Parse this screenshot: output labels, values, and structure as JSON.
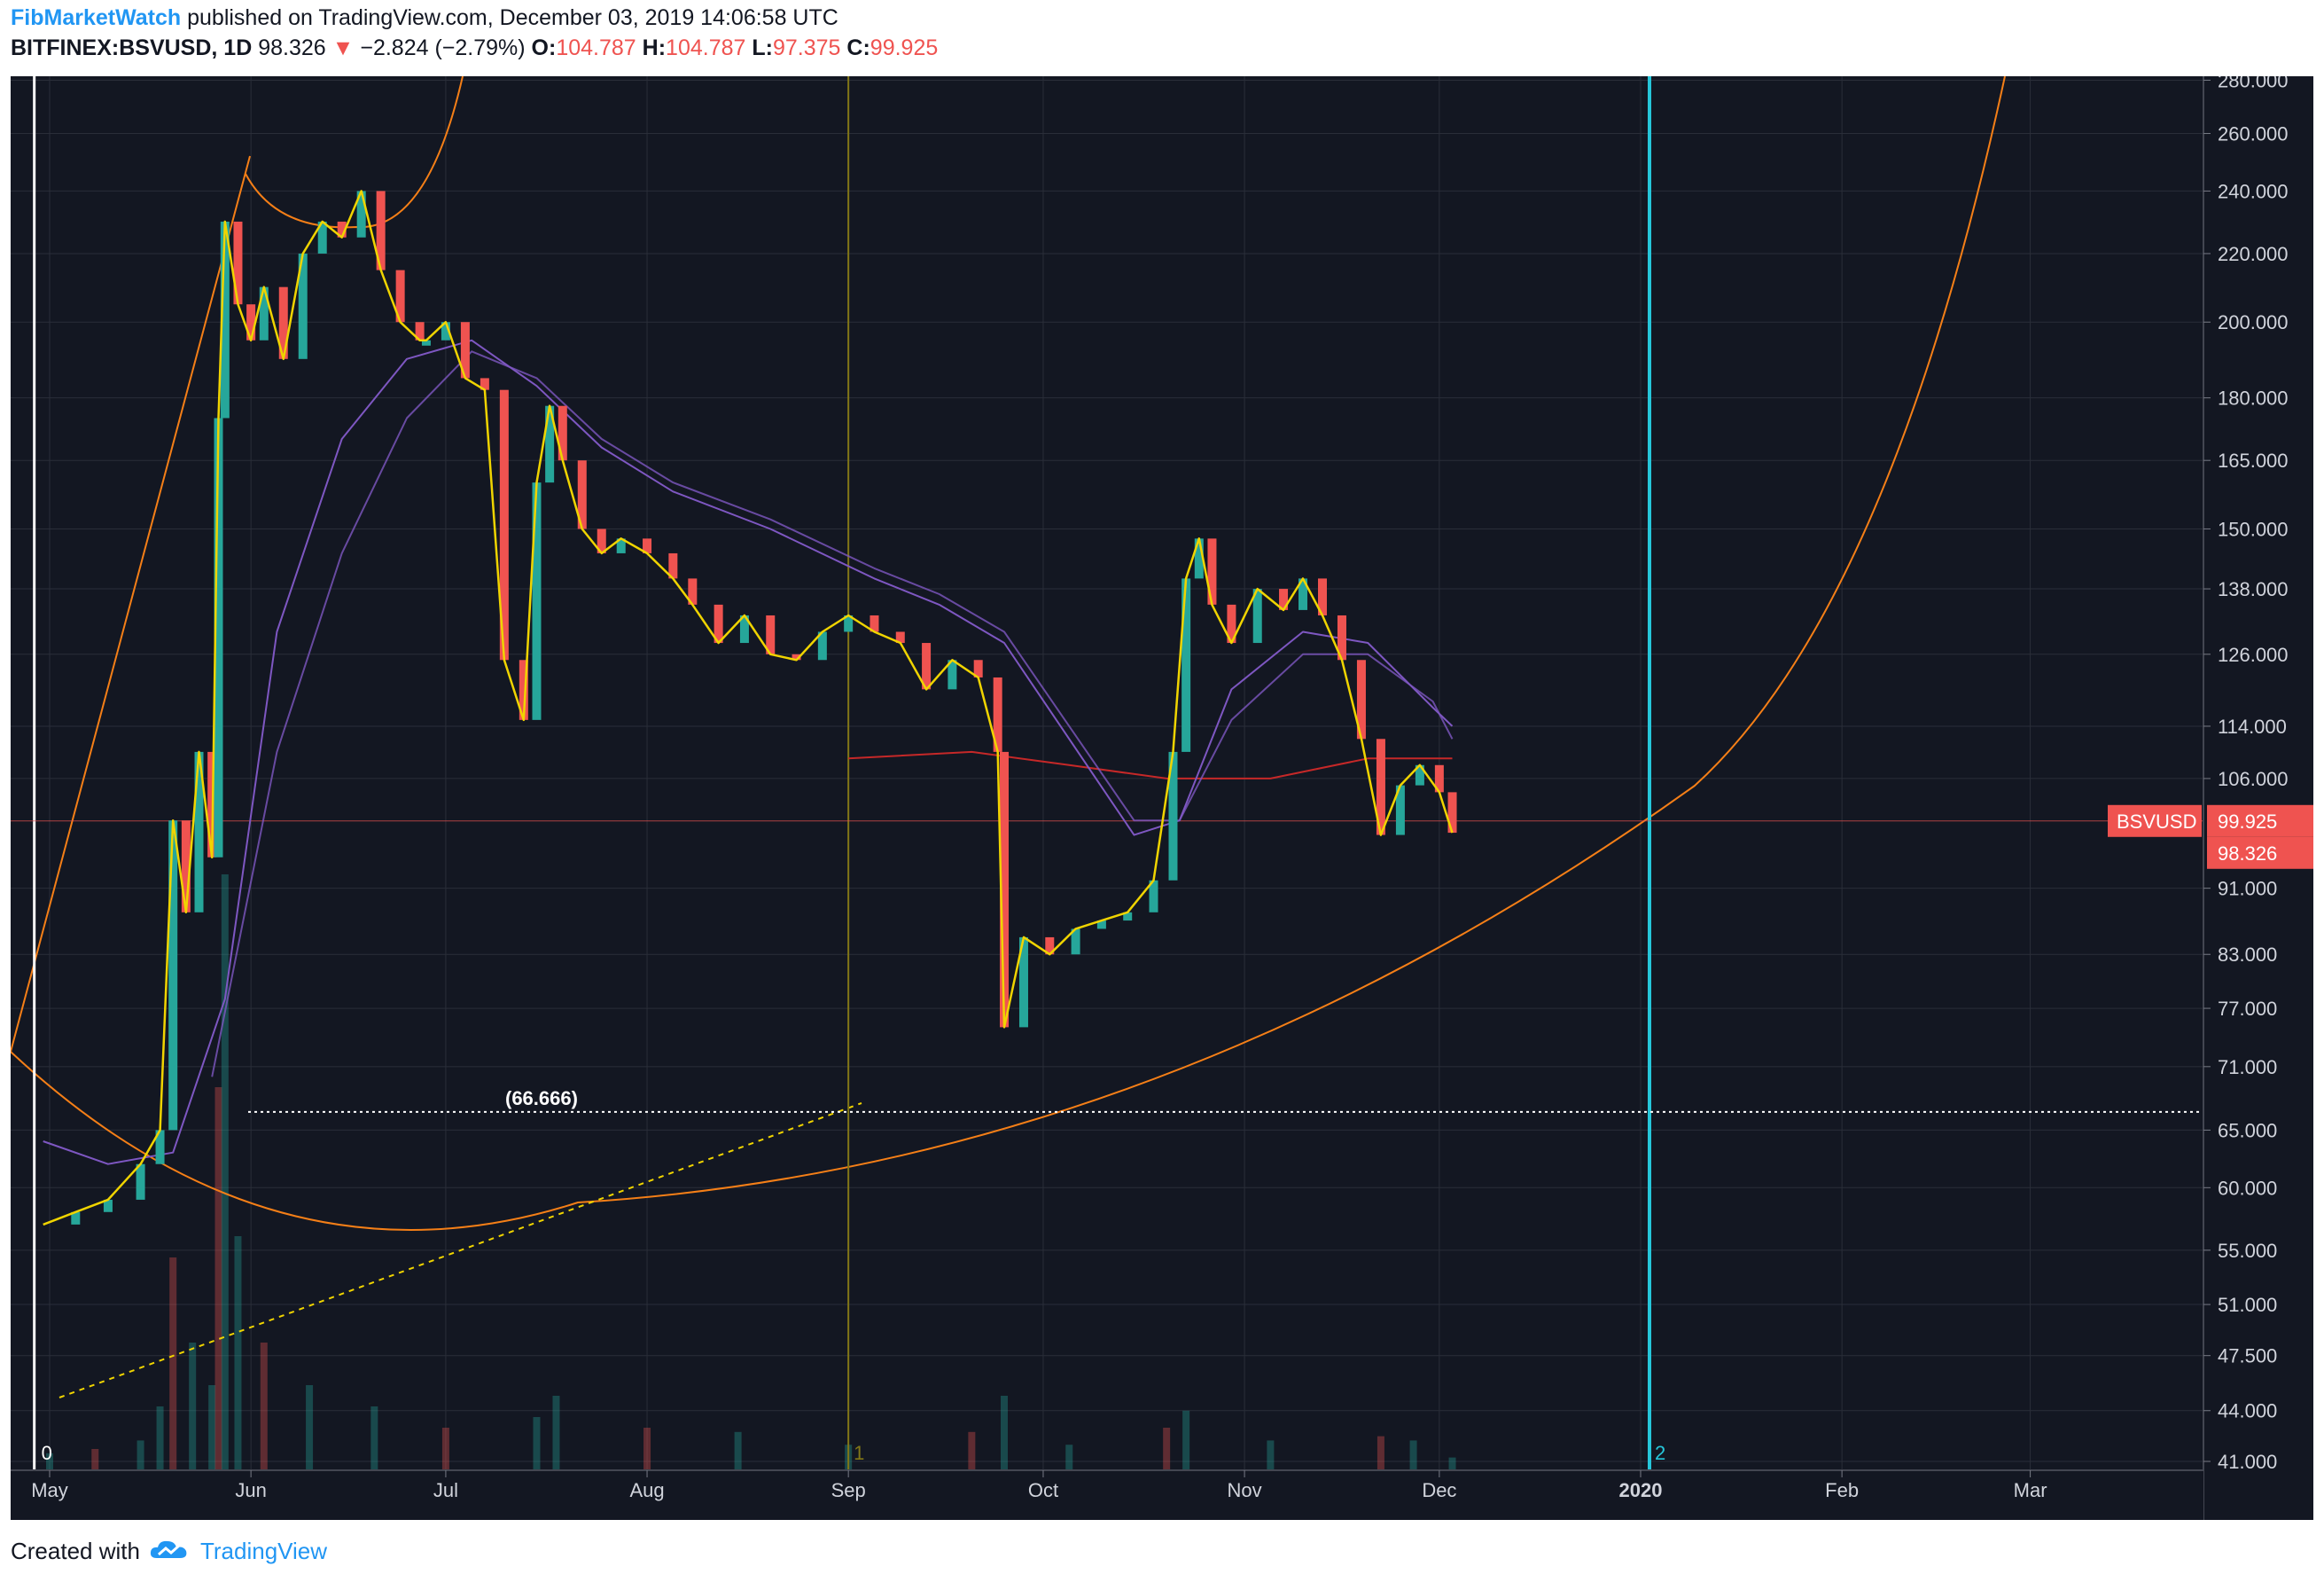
{
  "header": {
    "author": "FibMarketWatch",
    "published": "published on TradingView.com, December 03, 2019 14:06:58 UTC",
    "symbol": "BITFINEX:BSVUSD, 1D",
    "last": "98.326",
    "change_arrow": "▼",
    "change": "−2.824 (−2.79%)",
    "open_label": "O:",
    "open": "104.787",
    "high_label": "H:",
    "high": "104.787",
    "low_label": "L:",
    "low": "97.375",
    "close_label": "C:",
    "close": "99.925"
  },
  "footer": {
    "created_with": "Created with",
    "brand": "TradingView"
  },
  "colors": {
    "background": "#131722",
    "grid": "#2a2e39",
    "up": "#26a69a",
    "down": "#ef5350",
    "price_line": "#f0d400",
    "ma_line": "#7e57c2",
    "red_ma": "#c62828",
    "arc": "#f57f17",
    "cyan": "#26c6da",
    "white": "#ffffff",
    "olive": "#827717",
    "text_axis": "#d1d4dc"
  },
  "chart_data": {
    "type": "line",
    "x_axis_labels": [
      "May",
      "Jun",
      "Jul",
      "Aug",
      "Sep",
      "Oct",
      "Nov",
      "Dec",
      "2020",
      "Feb",
      "Mar"
    ],
    "y_axis_labels": [
      "280.000",
      "260.000",
      "240.000",
      "220.000",
      "200.000",
      "180.000",
      "165.000",
      "150.000",
      "138.000",
      "126.000",
      "114.000",
      "106.000",
      "99.925",
      "98.326",
      "91.000",
      "83.000",
      "77.000",
      "71.000",
      "65.000",
      "60.000",
      "55.000",
      "51.000",
      "47.500",
      "44.000",
      "41.000"
    ],
    "y_scale": "log",
    "y_range": [
      41,
      290
    ],
    "symbol_badge": "BSVUSD",
    "last_price": 98.326,
    "close_price": 99.925,
    "fib_level_label": "(66.666)",
    "fib_level": 66.666,
    "vertical_marker_labels": [
      "0",
      "1",
      "2"
    ],
    "price_series": {
      "name": "BSVUSD",
      "dates": [
        "2019-04-30",
        "2019-05-05",
        "2019-05-10",
        "2019-05-15",
        "2019-05-18",
        "2019-05-20",
        "2019-05-22",
        "2019-05-24",
        "2019-05-26",
        "2019-05-27",
        "2019-05-28",
        "2019-05-30",
        "2019-06-01",
        "2019-06-03",
        "2019-06-06",
        "2019-06-09",
        "2019-06-12",
        "2019-06-15",
        "2019-06-18",
        "2019-06-21",
        "2019-06-24",
        "2019-06-27",
        "2019-06-28",
        "2019-07-01",
        "2019-07-04",
        "2019-07-07",
        "2019-07-10",
        "2019-07-13",
        "2019-07-15",
        "2019-07-17",
        "2019-07-19",
        "2019-07-22",
        "2019-07-25",
        "2019-07-28",
        "2019-08-01",
        "2019-08-05",
        "2019-08-08",
        "2019-08-12",
        "2019-08-16",
        "2019-08-20",
        "2019-08-24",
        "2019-08-28",
        "2019-09-01",
        "2019-09-05",
        "2019-09-09",
        "2019-09-13",
        "2019-09-17",
        "2019-09-21",
        "2019-09-24",
        "2019-09-25",
        "2019-09-28",
        "2019-10-02",
        "2019-10-06",
        "2019-10-10",
        "2019-10-14",
        "2019-10-18",
        "2019-10-21",
        "2019-10-23",
        "2019-10-25",
        "2019-10-27",
        "2019-10-30",
        "2019-11-03",
        "2019-11-07",
        "2019-11-10",
        "2019-11-13",
        "2019-11-16",
        "2019-11-19",
        "2019-11-22",
        "2019-11-25",
        "2019-11-28",
        "2019-12-01",
        "2019-12-03"
      ],
      "values": [
        57,
        58,
        59,
        62,
        65,
        100,
        88,
        110,
        95,
        175,
        230,
        205,
        195,
        210,
        190,
        220,
        230,
        225,
        240,
        215,
        200,
        195,
        195,
        200,
        185,
        182,
        125,
        115,
        160,
        178,
        165,
        150,
        145,
        148,
        145,
        140,
        135,
        128,
        133,
        126,
        125,
        130,
        133,
        130,
        128,
        120,
        125,
        122,
        110,
        75,
        85,
        83,
        86,
        87,
        88,
        92,
        110,
        140,
        148,
        135,
        128,
        138,
        134,
        140,
        133,
        125,
        112,
        98,
        105,
        108,
        104,
        98.3
      ]
    },
    "ma_purple_series": {
      "dates": [
        "2019-04-30",
        "2019-05-10",
        "2019-05-20",
        "2019-05-28",
        "2019-06-05",
        "2019-06-15",
        "2019-06-25",
        "2019-07-05",
        "2019-07-15",
        "2019-07-25",
        "2019-08-05",
        "2019-08-20",
        "2019-09-05",
        "2019-09-15",
        "2019-09-25",
        "2019-10-05",
        "2019-10-15",
        "2019-10-22",
        "2019-10-30",
        "2019-11-10",
        "2019-11-20",
        "2019-11-30",
        "2019-12-03"
      ],
      "values": [
        64,
        62,
        63,
        78,
        130,
        170,
        190,
        195,
        183,
        168,
        158,
        150,
        140,
        135,
        128,
        112,
        98,
        100,
        120,
        130,
        128,
        117,
        114
      ]
    },
    "ma_purple2_series": {
      "dates": [
        "2019-05-26",
        "2019-06-05",
        "2019-06-15",
        "2019-06-25",
        "2019-07-05",
        "2019-07-15",
        "2019-07-25",
        "2019-08-05",
        "2019-08-20",
        "2019-09-05",
        "2019-09-15",
        "2019-09-25",
        "2019-10-05",
        "2019-10-15",
        "2019-10-22",
        "2019-10-30",
        "2019-11-10",
        "2019-11-20",
        "2019-11-30",
        "2019-12-03"
      ],
      "values": [
        70,
        110,
        145,
        175,
        192,
        185,
        170,
        160,
        152,
        142,
        137,
        130,
        114,
        100,
        100,
        115,
        126,
        126,
        118,
        112
      ]
    },
    "ma_red_series": {
      "dates": [
        "2019-09-01",
        "2019-09-20",
        "2019-10-05",
        "2019-10-20",
        "2019-11-05",
        "2019-11-20",
        "2019-12-03"
      ],
      "values": [
        109,
        110,
        108,
        106,
        106,
        109,
        109
      ]
    },
    "volume_series": {
      "dates": [
        "2019-05-01",
        "2019-05-08",
        "2019-05-15",
        "2019-05-18",
        "2019-05-20",
        "2019-05-23",
        "2019-05-26",
        "2019-05-27",
        "2019-05-28",
        "2019-05-30",
        "2019-06-03",
        "2019-06-10",
        "2019-06-20",
        "2019-07-01",
        "2019-07-15",
        "2019-07-18",
        "2019-08-01",
        "2019-08-15",
        "2019-09-01",
        "2019-09-20",
        "2019-09-25",
        "2019-10-05",
        "2019-10-20",
        "2019-10-23",
        "2019-11-05",
        "2019-11-22",
        "2019-11-27",
        "2019-12-03"
      ],
      "values": [
        8,
        10,
        14,
        30,
        100,
        60,
        40,
        180,
        280,
        110,
        60,
        40,
        30,
        20,
        25,
        35,
        20,
        18,
        12,
        18,
        35,
        12,
        20,
        28,
        14,
        16,
        14,
        6
      ]
    }
  }
}
